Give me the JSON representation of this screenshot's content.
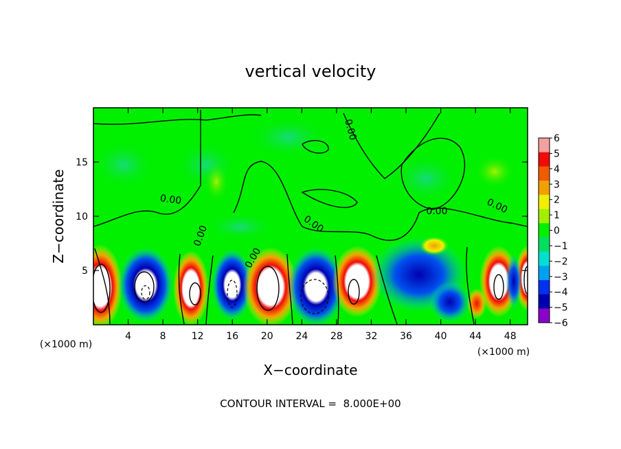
{
  "chart_data": {
    "type": "heatmap",
    "title": "vertical velocity",
    "xlabel": "X−coordinate",
    "ylabel": "Z−coordinate",
    "x_unit_left": "(×1000 m)",
    "x_unit_right": "(×1000 m)",
    "xlim": [
      0,
      50
    ],
    "ylim": [
      0,
      20
    ],
    "x_ticks": [
      4,
      8,
      12,
      16,
      20,
      24,
      28,
      32,
      36,
      40,
      44,
      48
    ],
    "y_ticks": [
      5,
      10,
      15
    ],
    "colorbar": {
      "labels": [
        "6",
        "5",
        "4",
        "3",
        "2",
        "1",
        "0",
        "−1",
        "−2",
        "−3",
        "−4",
        "−5",
        "−6"
      ],
      "colors": [
        "#f5a0a0",
        "#f00a0a",
        "#f05a00",
        "#f0a000",
        "#f0f000",
        "#a0f000",
        "#00f000",
        "#00e060",
        "#00e0d0",
        "#00a0f0",
        "#0030f0",
        "#0000b0",
        "#8a00c8"
      ]
    },
    "contour_labels": [
      "0.00",
      "0.00",
      "0.00",
      "0.00",
      "0.00",
      "0.00",
      "0.00"
    ],
    "note": "CONTOUR INTERVAL =  8.000E+00"
  }
}
